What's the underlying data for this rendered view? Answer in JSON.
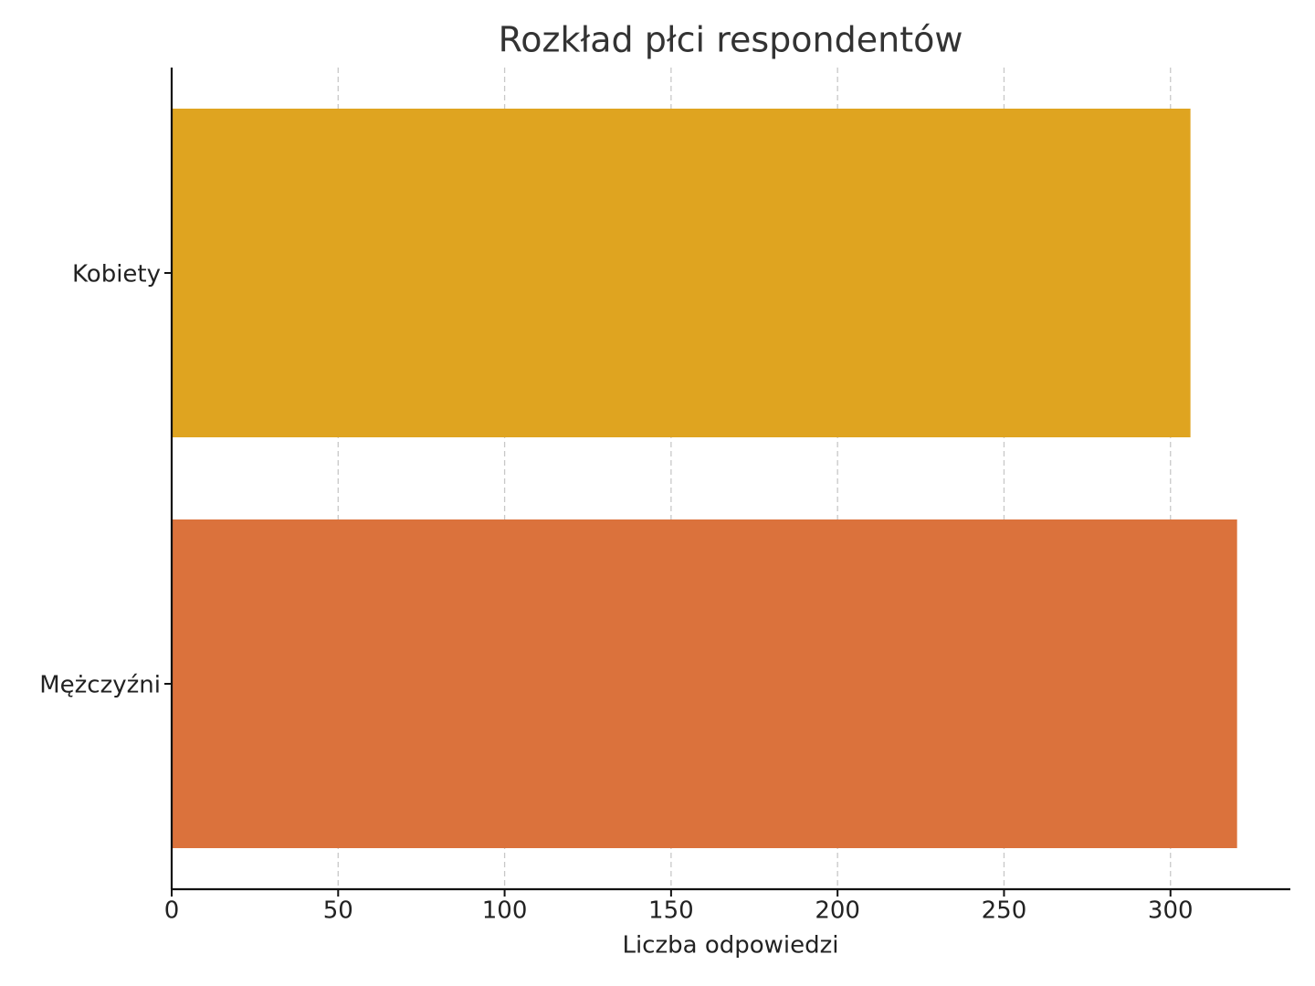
{
  "chart_data": {
    "type": "barh",
    "title": "Rozkład płci respondentów",
    "xlabel": "Liczba odpowiedzi",
    "categories": [
      "Kobiety",
      "Mężczyźni"
    ],
    "values": [
      306,
      320
    ],
    "colors": [
      "#dfa420",
      "#db723c"
    ],
    "xlim": [
      0,
      336
    ],
    "xticks": [
      0,
      50,
      100,
      150,
      200,
      250,
      300
    ],
    "grid": true
  }
}
